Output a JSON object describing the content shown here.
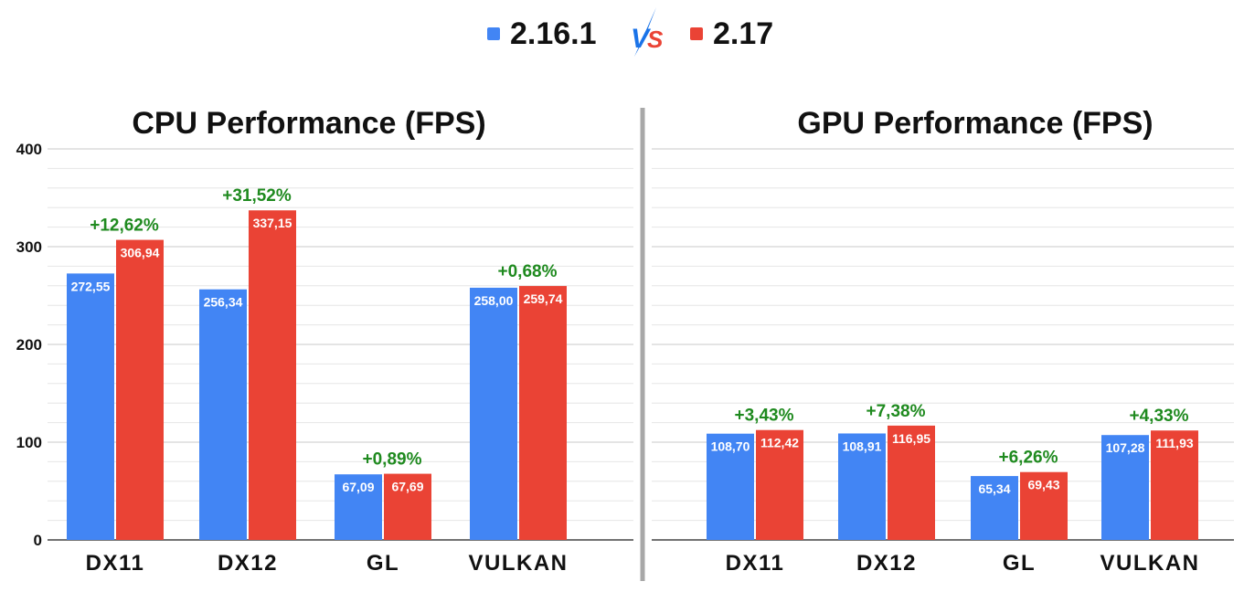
{
  "legend": {
    "items": [
      {
        "label": "2.16.1",
        "color": "#4285f4"
      },
      {
        "label": "2.17",
        "color": "#ea4335"
      }
    ],
    "vs_icon": "vs-lightning-icon",
    "vs_colors": [
      "#1a73e8",
      "#ea4335"
    ]
  },
  "change_color": "#1f8a1f",
  "chart_data": [
    {
      "type": "bar",
      "title": "CPU Performance (FPS)",
      "categories": [
        "DX11",
        "DX12",
        "GL",
        "VULKAN"
      ],
      "series": [
        {
          "name": "2.16.1",
          "values": [
            272.55,
            256.34,
            67.09,
            258.0
          ],
          "labels": [
            "272,55",
            "256,34",
            "67,09",
            "258,00"
          ]
        },
        {
          "name": "2.17",
          "values": [
            306.94,
            337.15,
            67.69,
            259.74
          ],
          "labels": [
            "306,94",
            "337,15",
            "67,69",
            "259,74"
          ]
        }
      ],
      "changes": [
        "+12,62%",
        "+31,52%",
        "+0,89%",
        "+0,68%"
      ],
      "ylim": [
        0,
        400
      ],
      "yticks": [
        0,
        100,
        200,
        300,
        400
      ],
      "grid": true
    },
    {
      "type": "bar",
      "title": "GPU Performance (FPS)",
      "categories": [
        "DX11",
        "DX12",
        "GL",
        "VULKAN"
      ],
      "series": [
        {
          "name": "2.16.1",
          "values": [
            108.7,
            108.91,
            65.34,
            107.28
          ],
          "labels": [
            "108,70",
            "108,91",
            "65,34",
            "107,28"
          ]
        },
        {
          "name": "2.17",
          "values": [
            112.42,
            116.95,
            69.43,
            111.93
          ],
          "labels": [
            "112,42",
            "116,95",
            "69,43",
            "111,93"
          ]
        }
      ],
      "changes": [
        "+3,43%",
        "+7,38%",
        "+6,26%",
        "+4,33%"
      ],
      "ylim": [
        0,
        400
      ],
      "grid": true
    }
  ]
}
